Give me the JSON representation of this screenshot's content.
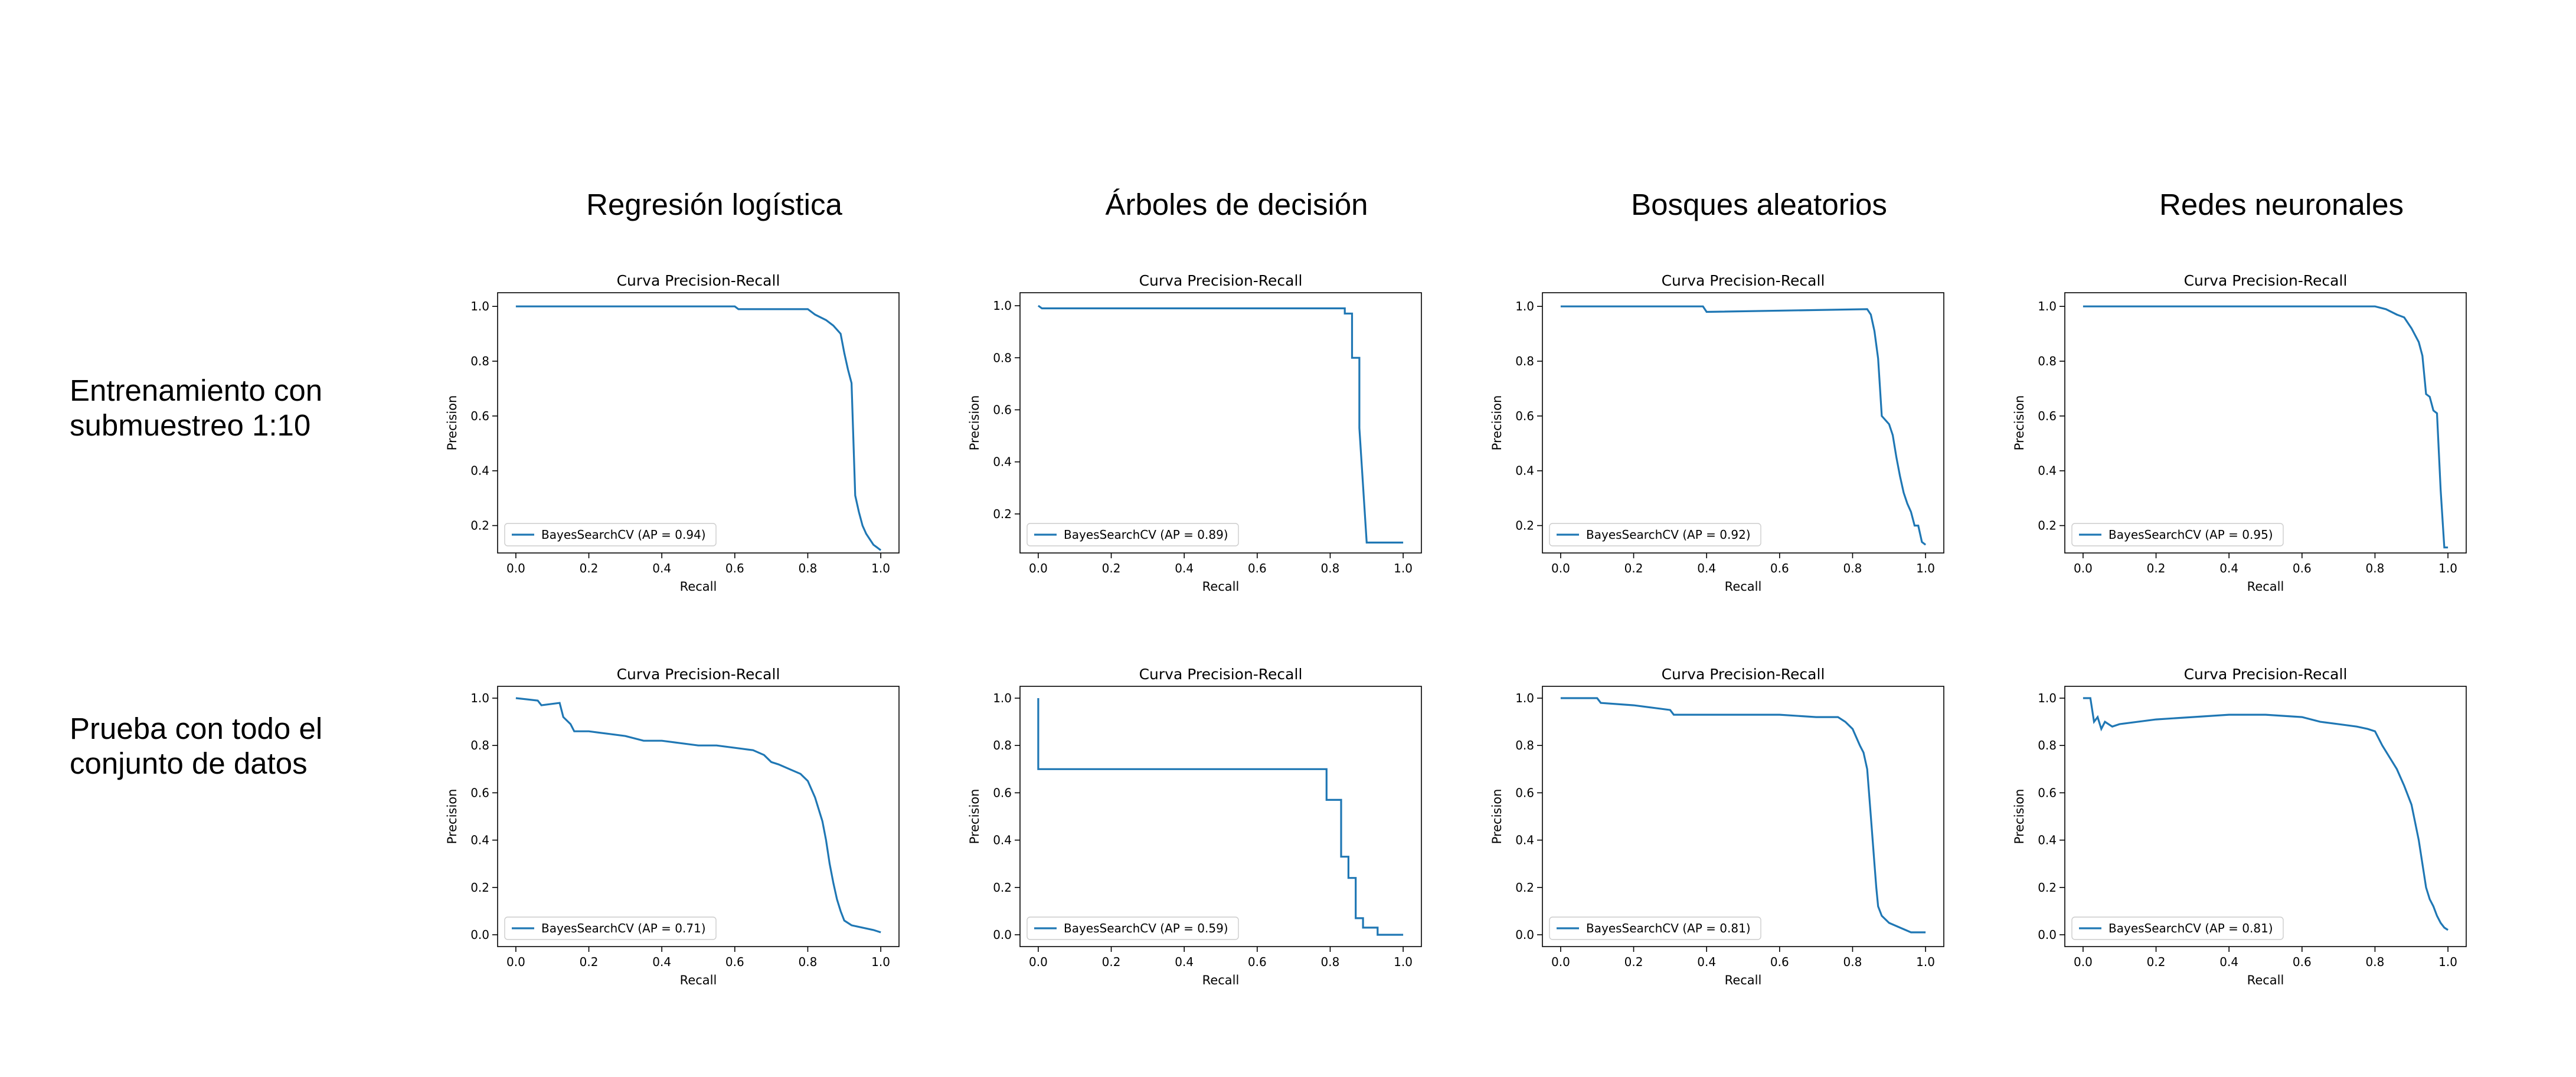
{
  "figure": {
    "column_titles": [
      "Regresión logística",
      "Árboles de decisión",
      "Bosques aleatorios",
      "Redes neuronales"
    ],
    "row_titles": [
      "Entrenamiento con\nsubmuestreo 1:10",
      "Prueba con todo el\nconjunto de datos"
    ]
  },
  "chart_data": [
    {
      "type": "line",
      "title": "Curva Precision-Recall",
      "xlabel": "Recall",
      "ylabel": "Precision",
      "xlim": [
        -0.05,
        1.05
      ],
      "ylim": [
        0.1,
        1.05
      ],
      "xticks": [
        "0.0",
        "0.2",
        "0.4",
        "0.6",
        "0.8",
        "1.0"
      ],
      "yticks": [
        "0.2",
        "0.4",
        "0.6",
        "0.8",
        "1.0"
      ],
      "legend_position": "lower-left",
      "grid": false,
      "color": "#1f77b4",
      "series": [
        {
          "name": "BayesSearchCV (AP = 0.94)",
          "x": [
            0,
            0.6,
            0.61,
            0.8,
            0.82,
            0.85,
            0.87,
            0.89,
            0.9,
            0.91,
            0.92,
            0.93,
            0.94,
            0.95,
            0.96,
            0.97,
            0.98,
            0.99,
            1.0
          ],
          "y": [
            1.0,
            1.0,
            0.99,
            0.99,
            0.97,
            0.95,
            0.93,
            0.9,
            0.83,
            0.77,
            0.72,
            0.31,
            0.25,
            0.2,
            0.17,
            0.15,
            0.13,
            0.12,
            0.11
          ]
        }
      ]
    },
    {
      "type": "line",
      "title": "Curva Precision-Recall",
      "xlabel": "Recall",
      "ylabel": "Precision",
      "xlim": [
        -0.05,
        1.05
      ],
      "ylim": [
        0.05,
        1.05
      ],
      "xticks": [
        "0.0",
        "0.2",
        "0.4",
        "0.6",
        "0.8",
        "1.0"
      ],
      "yticks": [
        "0.2",
        "0.4",
        "0.6",
        "0.8",
        "1.0"
      ],
      "legend_position": "lower-left",
      "grid": false,
      "color": "#1f77b4",
      "series": [
        {
          "name": "BayesSearchCV (AP = 0.89)",
          "x": [
            0,
            0.01,
            0.84,
            0.84,
            0.86,
            0.86,
            0.88,
            0.88,
            0.9,
            1.0
          ],
          "y": [
            1.0,
            0.99,
            0.99,
            0.97,
            0.97,
            0.8,
            0.8,
            0.53,
            0.09,
            0.09
          ]
        }
      ]
    },
    {
      "type": "line",
      "title": "Curva Precision-Recall",
      "xlabel": "Recall",
      "ylabel": "Precision",
      "xlim": [
        -0.05,
        1.05
      ],
      "ylim": [
        0.1,
        1.05
      ],
      "xticks": [
        "0.0",
        "0.2",
        "0.4",
        "0.6",
        "0.8",
        "1.0"
      ],
      "yticks": [
        "0.2",
        "0.4",
        "0.6",
        "0.8",
        "1.0"
      ],
      "legend_position": "lower-left",
      "grid": false,
      "color": "#1f77b4",
      "series": [
        {
          "name": "BayesSearchCV (AP = 0.92)",
          "x": [
            0,
            0.39,
            0.4,
            0.84,
            0.85,
            0.86,
            0.87,
            0.88,
            0.9,
            0.91,
            0.92,
            0.93,
            0.94,
            0.95,
            0.96,
            0.97,
            0.98,
            0.99,
            1.0
          ],
          "y": [
            1.0,
            1.0,
            0.98,
            0.99,
            0.97,
            0.91,
            0.81,
            0.6,
            0.57,
            0.53,
            0.45,
            0.38,
            0.32,
            0.28,
            0.25,
            0.2,
            0.2,
            0.14,
            0.13
          ]
        }
      ]
    },
    {
      "type": "line",
      "title": "Curva Precision-Recall",
      "xlabel": "Recall",
      "ylabel": "Precision",
      "xlim": [
        -0.05,
        1.05
      ],
      "ylim": [
        0.1,
        1.05
      ],
      "xticks": [
        "0.0",
        "0.2",
        "0.4",
        "0.6",
        "0.8",
        "1.0"
      ],
      "yticks": [
        "0.2",
        "0.4",
        "0.6",
        "0.8",
        "1.0"
      ],
      "legend_position": "lower-left",
      "grid": false,
      "color": "#1f77b4",
      "series": [
        {
          "name": "BayesSearchCV (AP = 0.95)",
          "x": [
            0,
            0.8,
            0.83,
            0.86,
            0.88,
            0.9,
            0.92,
            0.93,
            0.94,
            0.95,
            0.96,
            0.97,
            0.98,
            0.99,
            1.0
          ],
          "y": [
            1.0,
            1.0,
            0.99,
            0.97,
            0.96,
            0.92,
            0.87,
            0.82,
            0.68,
            0.67,
            0.62,
            0.61,
            0.33,
            0.12,
            0.12
          ]
        }
      ]
    },
    {
      "type": "line",
      "title": "Curva Precision-Recall",
      "xlabel": "Recall",
      "ylabel": "Precision",
      "xlim": [
        -0.05,
        1.05
      ],
      "ylim": [
        -0.05,
        1.05
      ],
      "xticks": [
        "0.0",
        "0.2",
        "0.4",
        "0.6",
        "0.8",
        "1.0"
      ],
      "yticks": [
        "0.0",
        "0.2",
        "0.4",
        "0.6",
        "0.8",
        "1.0"
      ],
      "legend_position": "lower-left",
      "grid": false,
      "color": "#1f77b4",
      "series": [
        {
          "name": "BayesSearchCV (AP = 0.71)",
          "x": [
            0,
            0.06,
            0.07,
            0.12,
            0.13,
            0.15,
            0.16,
            0.2,
            0.25,
            0.3,
            0.35,
            0.4,
            0.45,
            0.5,
            0.55,
            0.6,
            0.65,
            0.68,
            0.7,
            0.72,
            0.75,
            0.78,
            0.8,
            0.82,
            0.84,
            0.85,
            0.86,
            0.87,
            0.88,
            0.89,
            0.9,
            0.92,
            0.95,
            0.98,
            1.0
          ],
          "y": [
            1.0,
            0.99,
            0.97,
            0.98,
            0.92,
            0.89,
            0.86,
            0.86,
            0.85,
            0.84,
            0.82,
            0.82,
            0.81,
            0.8,
            0.8,
            0.79,
            0.78,
            0.76,
            0.73,
            0.72,
            0.7,
            0.68,
            0.65,
            0.58,
            0.48,
            0.4,
            0.3,
            0.22,
            0.15,
            0.1,
            0.06,
            0.04,
            0.03,
            0.02,
            0.01
          ]
        }
      ]
    },
    {
      "type": "line",
      "title": "Curva Precision-Recall",
      "xlabel": "Recall",
      "ylabel": "Precision",
      "xlim": [
        -0.05,
        1.05
      ],
      "ylim": [
        -0.05,
        1.05
      ],
      "xticks": [
        "0.0",
        "0.2",
        "0.4",
        "0.6",
        "0.8",
        "1.0"
      ],
      "yticks": [
        "0.0",
        "0.2",
        "0.4",
        "0.6",
        "0.8",
        "1.0"
      ],
      "legend_position": "lower-left",
      "grid": false,
      "color": "#1f77b4",
      "series": [
        {
          "name": "BayesSearchCV (AP = 0.59)",
          "x": [
            0,
            0,
            0.79,
            0.79,
            0.83,
            0.83,
            0.85,
            0.85,
            0.87,
            0.87,
            0.89,
            0.89,
            0.93,
            0.93,
            1.0
          ],
          "y": [
            1.0,
            0.7,
            0.7,
            0.57,
            0.57,
            0.33,
            0.33,
            0.24,
            0.24,
            0.07,
            0.07,
            0.03,
            0.03,
            0.0,
            0.0
          ]
        }
      ]
    },
    {
      "type": "line",
      "title": "Curva Precision-Recall",
      "xlabel": "Recall",
      "ylabel": "Precision",
      "xlim": [
        -0.05,
        1.05
      ],
      "ylim": [
        -0.05,
        1.05
      ],
      "xticks": [
        "0.0",
        "0.2",
        "0.4",
        "0.6",
        "0.8",
        "1.0"
      ],
      "yticks": [
        "0.0",
        "0.2",
        "0.4",
        "0.6",
        "0.8",
        "1.0"
      ],
      "legend_position": "lower-left",
      "grid": false,
      "color": "#1f77b4",
      "series": [
        {
          "name": "BayesSearchCV (AP = 0.81)",
          "x": [
            0,
            0.1,
            0.11,
            0.2,
            0.25,
            0.3,
            0.31,
            0.4,
            0.5,
            0.6,
            0.7,
            0.76,
            0.78,
            0.8,
            0.82,
            0.83,
            0.84,
            0.85,
            0.86,
            0.865,
            0.87,
            0.88,
            0.9,
            0.93,
            0.96,
            1.0
          ],
          "y": [
            1.0,
            1.0,
            0.98,
            0.97,
            0.96,
            0.95,
            0.93,
            0.93,
            0.93,
            0.93,
            0.92,
            0.92,
            0.9,
            0.87,
            0.8,
            0.77,
            0.7,
            0.5,
            0.3,
            0.2,
            0.12,
            0.08,
            0.05,
            0.03,
            0.01,
            0.01
          ]
        }
      ]
    },
    {
      "type": "line",
      "title": "Curva Precision-Recall",
      "xlabel": "Recall",
      "ylabel": "Precision",
      "xlim": [
        -0.05,
        1.05
      ],
      "ylim": [
        -0.05,
        1.05
      ],
      "xticks": [
        "0.0",
        "0.2",
        "0.4",
        "0.6",
        "0.8",
        "1.0"
      ],
      "yticks": [
        "0.0",
        "0.2",
        "0.4",
        "0.6",
        "0.8",
        "1.0"
      ],
      "legend_position": "lower-left",
      "grid": false,
      "color": "#1f77b4",
      "series": [
        {
          "name": "BayesSearchCV (AP = 0.81)",
          "x": [
            0,
            0.02,
            0.03,
            0.04,
            0.05,
            0.06,
            0.08,
            0.1,
            0.15,
            0.2,
            0.3,
            0.4,
            0.5,
            0.6,
            0.65,
            0.7,
            0.75,
            0.78,
            0.8,
            0.82,
            0.84,
            0.86,
            0.88,
            0.9,
            0.92,
            0.93,
            0.94,
            0.95,
            0.96,
            0.97,
            0.98,
            0.99,
            1.0
          ],
          "y": [
            1.0,
            1.0,
            0.9,
            0.92,
            0.87,
            0.9,
            0.88,
            0.89,
            0.9,
            0.91,
            0.92,
            0.93,
            0.93,
            0.92,
            0.9,
            0.89,
            0.88,
            0.87,
            0.86,
            0.8,
            0.75,
            0.7,
            0.63,
            0.55,
            0.4,
            0.3,
            0.2,
            0.15,
            0.12,
            0.08,
            0.05,
            0.03,
            0.02
          ]
        }
      ]
    }
  ]
}
